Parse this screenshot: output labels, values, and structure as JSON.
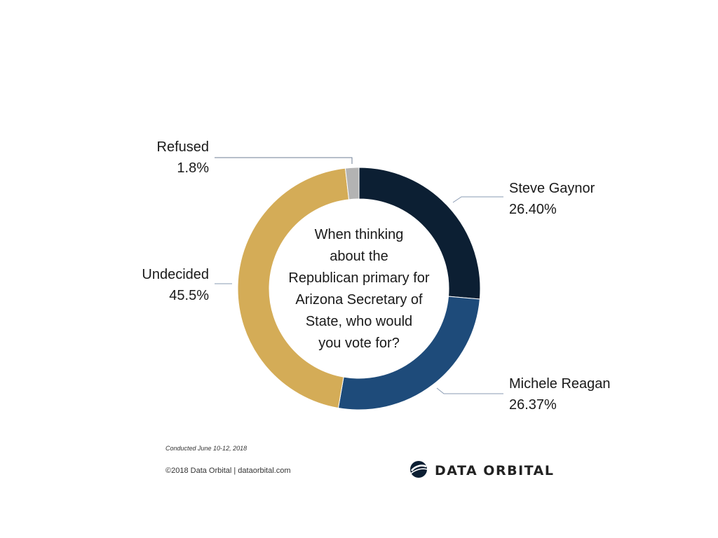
{
  "chart_data": {
    "type": "pie",
    "variant": "donut",
    "title": "When thinking about the Republican primary for Arizona Secretary of State, who would you vote for?",
    "title_lines": [
      "When thinking",
      "about the",
      "Republican primary for",
      "Arizona Secretary of",
      "State, who would",
      "you vote for?"
    ],
    "slices": [
      {
        "name": "Steve Gaynor",
        "value": 26.4,
        "label": "26.40%",
        "color": "#0c1f33"
      },
      {
        "name": "Michele Reagan",
        "value": 26.37,
        "label": "26.37%",
        "color": "#1e4b7a"
      },
      {
        "name": "Undecided",
        "value": 45.5,
        "label": "45.5%",
        "color": "#d4ac57"
      },
      {
        "name": "Refused",
        "value": 1.8,
        "label": "1.8%",
        "color": "#b3b3b3"
      }
    ],
    "start": "12 o'clock",
    "direction": "clockwise",
    "legend": "none"
  },
  "footer": {
    "conducted": "Conducted June 10-12, 2018",
    "copyright": "©2018 Data Orbital | dataorbital.com"
  },
  "brand": {
    "name": "DATA ORBITAL",
    "logo_icon": "orbit-logo-icon"
  }
}
